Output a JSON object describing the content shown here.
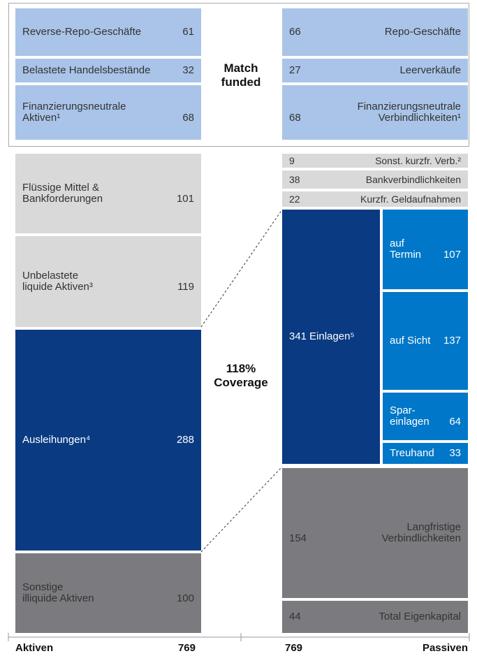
{
  "top": {
    "assets": [
      {
        "label": "Reverse-Repo-Geschäfte",
        "value": 61
      },
      {
        "label": "Belastete Handelsbestände",
        "value": 32
      },
      {
        "label": "Finanzierungsneutrale\nAktiven¹",
        "value": 68
      }
    ],
    "center_label": "Match\nfunded",
    "liabilities": [
      {
        "label": "Repo-Geschäfte",
        "value": 66
      },
      {
        "label": "Leerverkäufe",
        "value": 27
      },
      {
        "label": "Finanzierungsneutrale\nVerbindlichkeiten¹",
        "value": 68
      }
    ]
  },
  "assets": [
    {
      "label": "Flüssige Mittel &\nBankforderungen",
      "value": 101
    },
    {
      "label": "Unbelastete\nliquide Aktiven³",
      "value": 119
    },
    {
      "label": "Ausleihungen⁴",
      "value": 288
    },
    {
      "label": "Sonstige\nilliquide Aktiven",
      "value": 100
    }
  ],
  "coverage_label": "118%\nCoverage",
  "liabilities": {
    "short": [
      {
        "label": "Sonst. kurzfr. Verb.²",
        "value": 9
      },
      {
        "label": "Bankverbindlichkeiten",
        "value": 38
      },
      {
        "label": "Kurzfr. Geldaufnahmen",
        "value": 22
      }
    ],
    "deposits": {
      "label": "Einlagen⁵",
      "value": 341,
      "components": [
        {
          "label": "auf\nTermin",
          "value": 107
        },
        {
          "label": "auf Sicht",
          "value": 137
        },
        {
          "label": "Spar-\neinlagen",
          "value": 64
        },
        {
          "label": "Treuhand",
          "value": 33
        }
      ]
    },
    "long": [
      {
        "label": "Langfristige\nVerbindlichkeiten",
        "value": 154
      },
      {
        "label": "Total Eigenkapital",
        "value": 44
      }
    ]
  },
  "footer": {
    "assets_label": "Aktiven",
    "assets_total": 769,
    "liabilities_total": 769,
    "liabilities_label": "Passiven"
  }
}
